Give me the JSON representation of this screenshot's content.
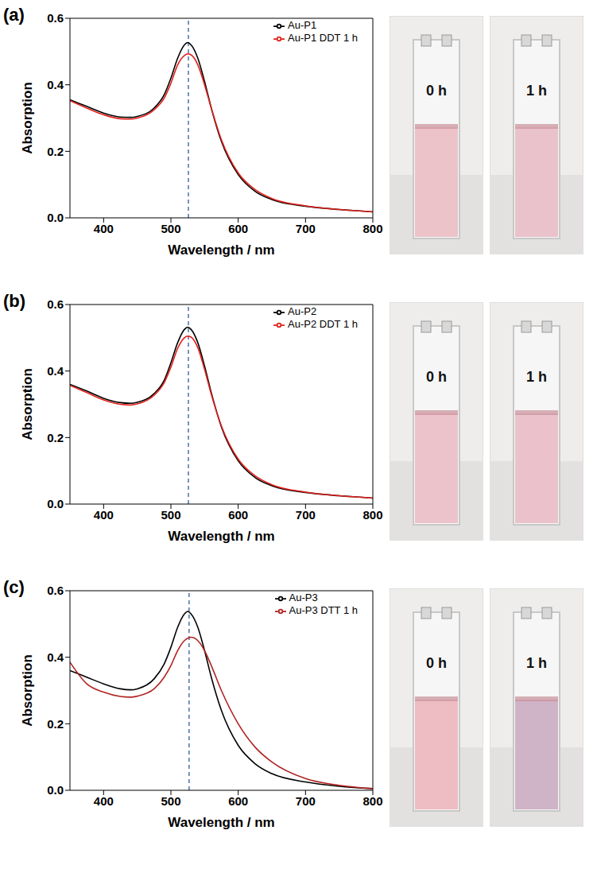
{
  "chart_data": [
    {
      "type": "line",
      "panel": "(a)",
      "x_label": "Wavelength / nm",
      "y_label": "Absorption",
      "x": [
        350,
        375,
        400,
        425,
        440,
        450,
        475,
        490,
        500,
        510,
        520,
        525,
        530,
        540,
        550,
        560,
        575,
        600,
        625,
        650,
        700,
        750,
        800
      ],
      "xlim": [
        350,
        800
      ],
      "xticks": [
        400,
        500,
        600,
        700,
        800
      ],
      "ylim": [
        0,
        0.6
      ],
      "yticks": [
        {
          "value": 0,
          "label": "0.0"
        },
        0.2,
        0.4,
        0.6
      ],
      "reference_x": 526,
      "legend": "upper right",
      "series": [
        {
          "name": "Au-P1",
          "color": "#000000",
          "values": [
            0.355,
            0.335,
            0.315,
            0.303,
            0.302,
            0.305,
            0.33,
            0.37,
            0.42,
            0.48,
            0.52,
            0.527,
            0.52,
            0.48,
            0.41,
            0.33,
            0.23,
            0.13,
            0.08,
            0.055,
            0.035,
            0.025,
            0.018
          ]
        },
        {
          "name": "Au-P1 DDT 1 h",
          "color": "#e0201b",
          "values": [
            0.352,
            0.33,
            0.31,
            0.298,
            0.297,
            0.3,
            0.325,
            0.36,
            0.405,
            0.46,
            0.488,
            0.493,
            0.49,
            0.46,
            0.4,
            0.33,
            0.235,
            0.135,
            0.085,
            0.058,
            0.036,
            0.025,
            0.018
          ]
        }
      ]
    },
    {
      "type": "line",
      "panel": "(b)",
      "x_label": "Wavelength / nm",
      "y_label": "Absorption",
      "x": [
        350,
        375,
        400,
        425,
        440,
        450,
        475,
        490,
        500,
        510,
        520,
        525,
        530,
        540,
        550,
        560,
        575,
        600,
        625,
        650,
        700,
        750,
        800
      ],
      "xlim": [
        350,
        800
      ],
      "xticks": [
        400,
        500,
        600,
        700,
        800
      ],
      "ylim": [
        0,
        0.6
      ],
      "yticks": [
        {
          "value": 0,
          "label": "0.0"
        },
        0.2,
        0.4,
        0.6
      ],
      "reference_x": 526,
      "legend": "upper right",
      "series": [
        {
          "name": "Au-P2",
          "color": "#000000",
          "values": [
            0.36,
            0.34,
            0.318,
            0.305,
            0.303,
            0.306,
            0.332,
            0.372,
            0.425,
            0.485,
            0.525,
            0.532,
            0.525,
            0.485,
            0.415,
            0.335,
            0.232,
            0.13,
            0.08,
            0.055,
            0.035,
            0.025,
            0.018
          ]
        },
        {
          "name": "Au-P2 DDT 1 h",
          "color": "#e0201b",
          "values": [
            0.357,
            0.335,
            0.313,
            0.3,
            0.298,
            0.301,
            0.327,
            0.365,
            0.412,
            0.468,
            0.5,
            0.505,
            0.502,
            0.47,
            0.405,
            0.33,
            0.235,
            0.135,
            0.085,
            0.058,
            0.036,
            0.025,
            0.018
          ]
        }
      ]
    },
    {
      "type": "line",
      "panel": "(c)",
      "x_label": "Wavelength / nm",
      "y_label": "Absorption",
      "x": [
        350,
        375,
        400,
        425,
        440,
        450,
        475,
        490,
        500,
        510,
        520,
        525,
        530,
        540,
        550,
        560,
        575,
        600,
        625,
        650,
        700,
        750,
        800
      ],
      "xlim": [
        350,
        800
      ],
      "xticks": [
        400,
        500,
        600,
        700,
        800
      ],
      "ylim": [
        0,
        0.6
      ],
      "yticks": [
        {
          "value": 0,
          "label": "0.0"
        },
        0.2,
        0.4,
        0.6
      ],
      "reference_x": 527,
      "legend": "upper right",
      "series": [
        {
          "name": "Au-P3",
          "color": "#000000",
          "values": [
            0.36,
            0.34,
            0.32,
            0.305,
            0.302,
            0.305,
            0.335,
            0.38,
            0.43,
            0.49,
            0.53,
            0.538,
            0.53,
            0.49,
            0.42,
            0.34,
            0.24,
            0.135,
            0.08,
            0.05,
            0.025,
            0.012,
            0.005
          ]
        },
        {
          "name": "Au-P3 DTT 1 h",
          "color": "#b22222",
          "values": [
            0.385,
            0.32,
            0.295,
            0.282,
            0.28,
            0.283,
            0.305,
            0.34,
            0.375,
            0.42,
            0.45,
            0.457,
            0.46,
            0.45,
            0.42,
            0.375,
            0.3,
            0.2,
            0.13,
            0.085,
            0.035,
            0.015,
            0.005
          ]
        }
      ]
    }
  ],
  "photos": [
    [
      {
        "label": "0 h",
        "color": "#ecc3c9"
      },
      {
        "label": "1 h",
        "color": "#e9c2cb"
      }
    ],
    [
      {
        "label": "0 h",
        "color": "#edc3cb"
      },
      {
        "label": "1 h",
        "color": "#ebc2cb"
      }
    ],
    [
      {
        "label": "0 h",
        "color": "#eebdc3"
      },
      {
        "label": "1 h",
        "color": "#cfb3c6"
      }
    ]
  ]
}
